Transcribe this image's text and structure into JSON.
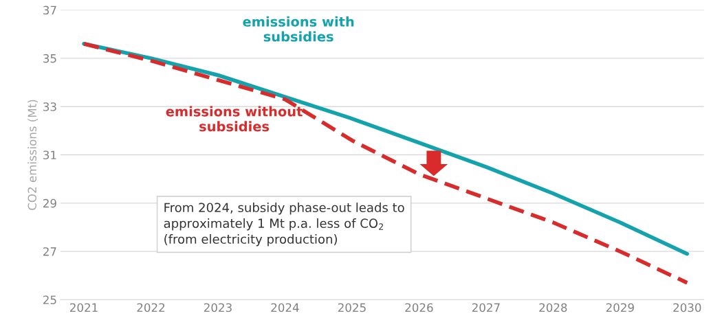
{
  "chart_data": {
    "type": "line",
    "ylabel": "CO2 emissions (Mt)",
    "categories": [
      "2021",
      "2022",
      "2023",
      "2024",
      "2025",
      "2026",
      "2027",
      "2028",
      "2029",
      "2030"
    ],
    "series": [
      {
        "name": "emissions with subsidies",
        "color": "#14a3ad",
        "line_style": "solid",
        "values": [
          35.6,
          35.0,
          34.3,
          33.4,
          32.5,
          31.5,
          30.5,
          29.4,
          28.2,
          26.9
        ]
      },
      {
        "name": "emissions without subsidies",
        "color": "#d92b2b",
        "line_style": "dashed",
        "values": [
          35.6,
          34.9,
          34.1,
          33.3,
          31.6,
          30.2,
          29.2,
          28.2,
          27.0,
          25.7
        ]
      }
    ],
    "ylim": [
      25,
      37
    ],
    "yticks": [
      25,
      27,
      29,
      31,
      33,
      35,
      37
    ],
    "grid": "y",
    "legend": false,
    "marker": "none",
    "annotations": [
      "From 2024, subsidy phase-out leads to approximately 1 Mt p.a. less of CO$_{2}$ (from electricity production)"
    ]
  }
}
